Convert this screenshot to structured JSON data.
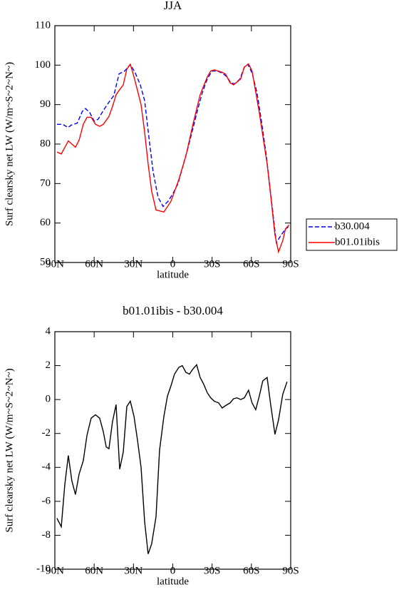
{
  "chart_data": [
    {
      "type": "line",
      "title": "JJA",
      "xlabel": "latitude",
      "ylabel": "Surf clearsky net LW (W/m~S~2~N~)",
      "xlim": [
        90,
        -90
      ],
      "xticks": [
        {
          "value": 90,
          "label": "90N"
        },
        {
          "value": 60,
          "label": "60N"
        },
        {
          "value": 30,
          "label": "30N"
        },
        0,
        {
          "value": -30,
          "label": "30S"
        },
        {
          "value": -60,
          "label": "60S"
        },
        {
          "value": -90,
          "label": "90S"
        }
      ],
      "ylim": [
        50,
        110
      ],
      "yticks": [
        50,
        60,
        70,
        80,
        90,
        100,
        110
      ],
      "legend": "right",
      "series": [
        {
          "name": "b30.004",
          "color": "#0000ff",
          "dashed": true,
          "x": [
            88.4,
            84,
            80,
            77.5,
            73,
            69,
            66.6,
            63.4,
            60,
            57,
            53,
            49,
            45,
            41,
            36.7,
            32.4,
            28.6,
            24.8,
            21.5,
            18.3,
            15,
            11.2,
            7.4,
            3.6,
            -0.2,
            -4,
            -7.8,
            -11.6,
            -15.4,
            -19.2,
            -22.5,
            -26.3,
            -30,
            -34,
            -37.7,
            -41.5,
            -44.2,
            -47.5,
            -51.3,
            -54.6,
            -57.3,
            -60.5,
            -64.3,
            -67.6,
            -71.4,
            -75.2,
            -79,
            -82.8,
            -86,
            -88.2
          ],
          "values": [
            85,
            85,
            84.2,
            84.8,
            85.3,
            88.3,
            89,
            88,
            85.8,
            86.3,
            88.5,
            90.5,
            92.3,
            97.8,
            98.5,
            100.2,
            98,
            95,
            91,
            82,
            73,
            66.5,
            64.2,
            65.5,
            67.5,
            70,
            74.5,
            79,
            84,
            89,
            93,
            96.5,
            98.5,
            98.5,
            98,
            97,
            95.5,
            95.3,
            96.5,
            99.5,
            100.2,
            98,
            93,
            86,
            77,
            66,
            55,
            57,
            58.5,
            59
          ]
        },
        {
          "name": "b01.01ibis",
          "color": "#ff0000",
          "dashed": false,
          "x": [
            88.4,
            85.1,
            79.7,
            74.3,
            71.5,
            68.3,
            65.5,
            62.3,
            59,
            55.8,
            53,
            48.7,
            46,
            43.3,
            40.5,
            37.8,
            35.1,
            32.4,
            29.6,
            24.2,
            21.5,
            18.8,
            16.1,
            12.8,
            6.8,
            1.4,
            -4.6,
            -10,
            -15.4,
            -20.9,
            -26.3,
            -29,
            -31.7,
            -37.7,
            -40.4,
            -43.7,
            -46.4,
            -51.8,
            -54.6,
            -57.8,
            -60.5,
            -66,
            -72,
            -74.7,
            -78,
            -80.7,
            -83.9,
            -86,
            -88.7
          ],
          "values": [
            78,
            77.5,
            80.8,
            79.2,
            81,
            85,
            86.8,
            86.8,
            85,
            84.5,
            85,
            87,
            89.5,
            92.5,
            93.8,
            95,
            99,
            100.2,
            97,
            90,
            83,
            75,
            68,
            63.3,
            62.8,
            65.5,
            71,
            77,
            85,
            92.5,
            97,
            98.5,
            98.8,
            98.2,
            97.7,
            95.5,
            95,
            96.5,
            99.5,
            100.3,
            98.5,
            88,
            75,
            67,
            57,
            52.7,
            55.5,
            58.5,
            59.5
          ]
        }
      ]
    },
    {
      "type": "line",
      "title": "b01.01ibis - b30.004",
      "xlabel": "latitude",
      "ylabel": "Surf clearsky net LW (W/m~S~2~N~)",
      "xlim": [
        90,
        -90
      ],
      "xticks": [
        {
          "value": 90,
          "label": "90N"
        },
        {
          "value": 60,
          "label": "60N"
        },
        {
          "value": 30,
          "label": "30N"
        },
        0,
        {
          "value": -30,
          "label": "30S"
        },
        {
          "value": -60,
          "label": "60S"
        },
        {
          "value": -90,
          "label": "90S"
        }
      ],
      "ylim": [
        -10,
        4
      ],
      "yticks": [
        -10,
        -8,
        -6,
        -4,
        -2,
        0,
        2,
        4
      ],
      "series": [
        {
          "color": "#000000",
          "dashed": false,
          "x": [
            88.4,
            85.1,
            82.4,
            79.7,
            77,
            74.3,
            71.5,
            68.3,
            65.5,
            62.3,
            59,
            55.8,
            53,
            50.8,
            48.7,
            46,
            43.3,
            40.5,
            37.8,
            35.1,
            32.4,
            29.6,
            26.9,
            24.2,
            21.5,
            18.8,
            16.1,
            12.8,
            10.1,
            6.8,
            4.1,
            1.4,
            -1.3,
            -4.6,
            -7.3,
            -10,
            -12.7,
            -15.4,
            -18.2,
            -20.9,
            -23.6,
            -26.3,
            -29,
            -31.7,
            -35,
            -37.7,
            -40.4,
            -43.7,
            -46.4,
            -49.1,
            -51.8,
            -54.6,
            -57.8,
            -60.5,
            -63.3,
            -66,
            -68.7,
            -72,
            -74.7,
            -78,
            -80.7,
            -83.9,
            -87.2
          ],
          "values": [
            -7,
            -7.5,
            -5,
            -3.3,
            -4.8,
            -5.6,
            -4.4,
            -3.6,
            -2.1,
            -1.1,
            -0.9,
            -1.1,
            -1.9,
            -2.8,
            -2.9,
            -1.3,
            -0.3,
            -4.1,
            -3.1,
            -0.4,
            -0.1,
            -1,
            -2.4,
            -4,
            -7.2,
            -9.1,
            -8.5,
            -6.9,
            -3,
            -1,
            0.2,
            0.8,
            1.5,
            1.9,
            2,
            1.6,
            1.5,
            1.8,
            2.05,
            1.3,
            0.9,
            0.4,
            0.1,
            -0.1,
            -0.2,
            -0.5,
            -0.35,
            -0.2,
            0.05,
            0.1,
            0,
            0.1,
            0.55,
            -0.2,
            -0.6,
            0.2,
            1.1,
            1.3,
            -0.3,
            -2.05,
            -1.2,
            0.3,
            1.05
          ]
        }
      ]
    }
  ]
}
